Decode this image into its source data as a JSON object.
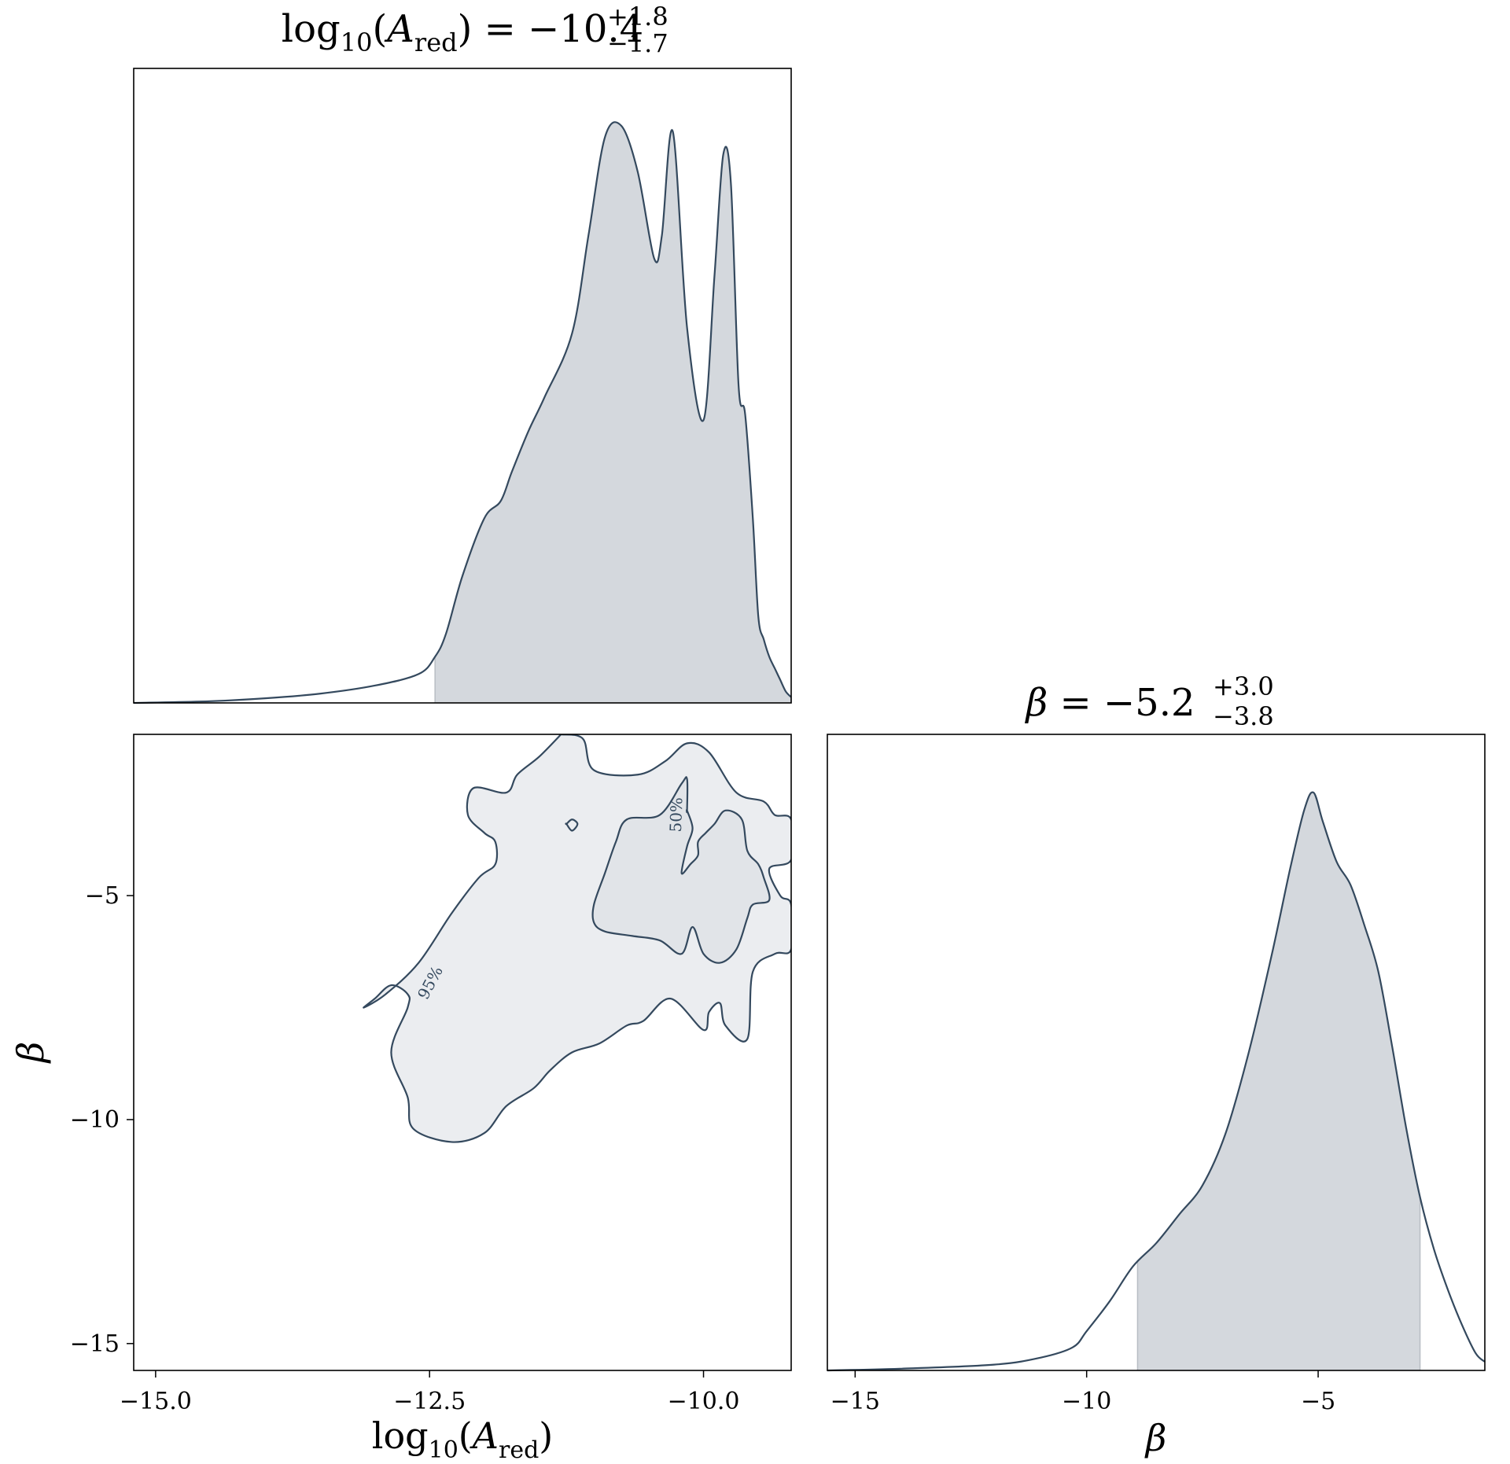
{
  "chart_data": [
    {
      "type": "area",
      "panel": "marginal-logA",
      "title": {
        "lhs": "log",
        "lhs_sub": "10",
        "param": "A",
        "param_sub": "red",
        "equals": "= −10.4",
        "upper": "+1.8",
        "lower": "−1.7"
      },
      "xlim": [
        -15.2,
        -9.2
      ],
      "x": [
        -15.2,
        -14.5,
        -14.0,
        -13.5,
        -13.0,
        -12.6,
        -12.45,
        -12.35,
        -12.2,
        -12.0,
        -11.85,
        -11.75,
        -11.6,
        -11.45,
        -11.2,
        -11.05,
        -10.9,
        -10.75,
        -10.6,
        -10.45,
        -10.38,
        -10.28,
        -10.15,
        -10.0,
        -9.9,
        -9.82,
        -9.75,
        -9.68,
        -9.62,
        -9.55,
        -9.5,
        -9.45,
        -9.4,
        -9.35,
        -9.3,
        -9.25,
        -9.2
      ],
      "density": [
        0.0,
        0.003,
        0.008,
        0.016,
        0.03,
        0.05,
        0.08,
        0.12,
        0.22,
        0.32,
        0.35,
        0.4,
        0.47,
        0.53,
        0.64,
        0.81,
        0.98,
        1.0,
        0.92,
        0.77,
        0.81,
        0.99,
        0.65,
        0.49,
        0.74,
        0.95,
        0.9,
        0.55,
        0.5,
        0.32,
        0.15,
        0.11,
        0.08,
        0.06,
        0.04,
        0.02,
        0.01
      ],
      "shade": [
        -12.45,
        -9.2
      ]
    },
    {
      "type": "contour",
      "panel": "joint-logA-beta",
      "xlabel": {
        "main": "log",
        "sub10": "10",
        "param": "A",
        "sub": "red"
      },
      "ylabel": "β",
      "xlim": [
        -15.2,
        -9.2
      ],
      "ylim": [
        -15.6,
        -1.4
      ],
      "xticks": [
        "−15.0",
        "−12.5",
        "−10.0"
      ],
      "xtick_values": [
        -15.0,
        -12.5,
        -10.0
      ],
      "yticks": [
        "−5",
        "−10",
        "−15"
      ],
      "ytick_values": [
        -5,
        -10,
        -15
      ],
      "levels": [
        {
          "label": "95%",
          "label_at": [
            -12.45,
            -7.0
          ],
          "points": [
            [
              -11.3,
              -1.4
            ],
            [
              -11.1,
              -1.5
            ],
            [
              -11.0,
              -2.2
            ],
            [
              -10.6,
              -2.3
            ],
            [
              -10.35,
              -2.0
            ],
            [
              -10.15,
              -1.6
            ],
            [
              -9.95,
              -1.8
            ],
            [
              -9.7,
              -2.7
            ],
            [
              -9.45,
              -2.9
            ],
            [
              -9.35,
              -3.2
            ],
            [
              -9.2,
              -3.3
            ],
            [
              -9.2,
              -4.2
            ],
            [
              -9.4,
              -4.4
            ],
            [
              -9.3,
              -5.0
            ],
            [
              -9.2,
              -5.2
            ],
            [
              -9.2,
              -6.2
            ],
            [
              -9.35,
              -6.3
            ],
            [
              -9.55,
              -6.7
            ],
            [
              -9.6,
              -8.2
            ],
            [
              -9.8,
              -7.9
            ],
            [
              -9.85,
              -7.4
            ],
            [
              -9.95,
              -7.6
            ],
            [
              -10.0,
              -8.0
            ],
            [
              -10.3,
              -7.3
            ],
            [
              -10.55,
              -7.8
            ],
            [
              -10.7,
              -7.9
            ],
            [
              -10.95,
              -8.3
            ],
            [
              -11.2,
              -8.5
            ],
            [
              -11.4,
              -8.9
            ],
            [
              -11.55,
              -9.3
            ],
            [
              -11.8,
              -9.7
            ],
            [
              -12.0,
              -10.3
            ],
            [
              -12.3,
              -10.5
            ],
            [
              -12.65,
              -10.2
            ],
            [
              -12.7,
              -9.5
            ],
            [
              -12.85,
              -8.5
            ],
            [
              -12.7,
              -7.5
            ],
            [
              -12.7,
              -7.2
            ],
            [
              -12.85,
              -7.0
            ],
            [
              -13.0,
              -7.3
            ],
            [
              -13.1,
              -7.5
            ],
            [
              -12.9,
              -7.2
            ],
            [
              -12.6,
              -6.5
            ],
            [
              -12.3,
              -5.4
            ],
            [
              -12.05,
              -4.6
            ],
            [
              -11.9,
              -4.3
            ],
            [
              -11.9,
              -3.8
            ],
            [
              -12.0,
              -3.6
            ],
            [
              -12.15,
              -3.2
            ],
            [
              -12.1,
              -2.6
            ],
            [
              -11.8,
              -2.7
            ],
            [
              -11.7,
              -2.3
            ],
            [
              -11.5,
              -1.9
            ],
            [
              -11.3,
              -1.4
            ]
          ]
        },
        {
          "label": "50%",
          "label_at": [
            -10.2,
            -3.2
          ],
          "points": [
            [
              -10.15,
              -3.1
            ],
            [
              -10.15,
              -2.4
            ],
            [
              -10.2,
              -2.5
            ],
            [
              -10.4,
              -3.2
            ],
            [
              -10.7,
              -3.3
            ],
            [
              -10.8,
              -3.8
            ],
            [
              -10.9,
              -4.5
            ],
            [
              -11.0,
              -5.2
            ],
            [
              -11.0,
              -5.6
            ],
            [
              -10.9,
              -5.8
            ],
            [
              -10.65,
              -5.9
            ],
            [
              -10.4,
              -6.0
            ],
            [
              -10.2,
              -6.3
            ],
            [
              -10.1,
              -5.7
            ],
            [
              -10.0,
              -6.3
            ],
            [
              -9.85,
              -6.5
            ],
            [
              -9.7,
              -6.2
            ],
            [
              -9.6,
              -5.5
            ],
            [
              -9.55,
              -5.2
            ],
            [
              -9.4,
              -5.1
            ],
            [
              -9.45,
              -4.6
            ],
            [
              -9.5,
              -4.3
            ],
            [
              -9.6,
              -4.0
            ],
            [
              -9.65,
              -3.3
            ],
            [
              -9.8,
              -3.1
            ],
            [
              -9.9,
              -3.4
            ],
            [
              -9.98,
              -3.6
            ],
            [
              -10.05,
              -3.8
            ],
            [
              -10.05,
              -4.1
            ],
            [
              -10.12,
              -4.3
            ],
            [
              -10.2,
              -4.5
            ],
            [
              -10.15,
              -3.9
            ],
            [
              -10.1,
              -3.5
            ],
            [
              -10.15,
              -3.1
            ]
          ]
        },
        {
          "label": "",
          "points": [
            [
              -11.25,
              -3.4
            ],
            [
              -11.2,
              -3.3
            ],
            [
              -11.15,
              -3.4
            ],
            [
              -11.2,
              -3.55
            ],
            [
              -11.25,
              -3.4
            ]
          ]
        }
      ]
    },
    {
      "type": "area",
      "panel": "marginal-beta",
      "title": {
        "param": "β",
        "equals": "= −5.2",
        "upper": "+3.0",
        "lower": "−3.8"
      },
      "xlabel": "β",
      "xlim": [
        -15.6,
        -1.4
      ],
      "xticks": [
        "−15",
        "−10",
        "−5"
      ],
      "xtick_values": [
        -15,
        -10,
        -5
      ],
      "x": [
        -15.6,
        -14.0,
        -12.0,
        -11.0,
        -10.3,
        -10.0,
        -9.5,
        -9.0,
        -8.5,
        -8.0,
        -7.5,
        -7.0,
        -6.5,
        -6.0,
        -5.6,
        -5.3,
        -5.1,
        -4.9,
        -4.6,
        -4.3,
        -4.0,
        -3.7,
        -3.4,
        -3.1,
        -2.8,
        -2.5,
        -2.2,
        -1.9,
        -1.6,
        -1.4
      ],
      "density": [
        0.0,
        0.003,
        0.01,
        0.022,
        0.04,
        0.068,
        0.12,
        0.18,
        0.22,
        0.27,
        0.32,
        0.41,
        0.55,
        0.72,
        0.87,
        0.97,
        1.0,
        0.95,
        0.88,
        0.84,
        0.77,
        0.69,
        0.56,
        0.42,
        0.3,
        0.21,
        0.14,
        0.08,
        0.03,
        0.015
      ],
      "shade": [
        -8.9,
        -2.8
      ]
    }
  ],
  "colors": {
    "line": "#34495e",
    "fill_marginal": "#d4d8dd",
    "fill_contour_outer": "#ebedf0",
    "fill_contour_inner": "#e1e4e8",
    "frame": "#000000"
  }
}
